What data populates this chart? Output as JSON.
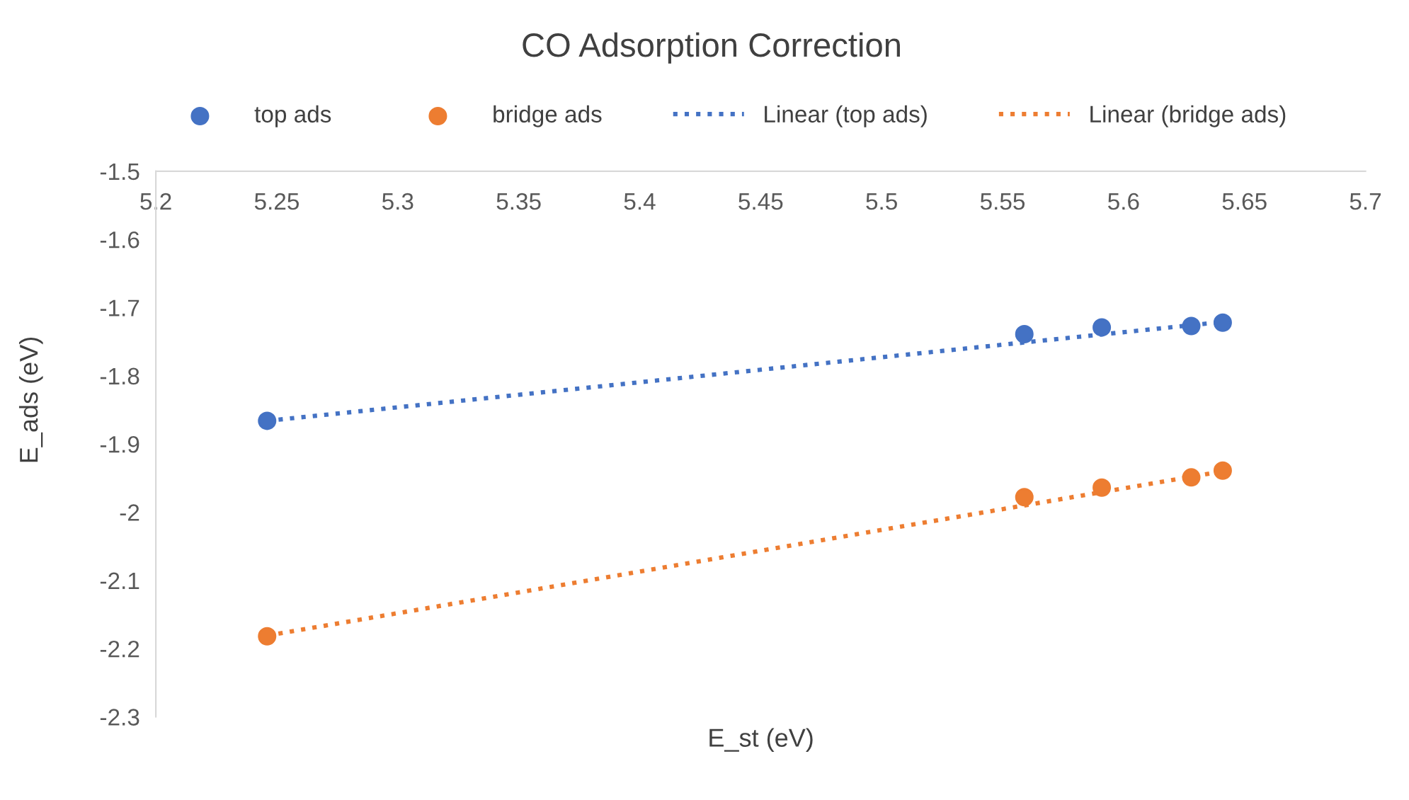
{
  "chart_data": {
    "type": "scatter",
    "title": "CO Adsorption Correction",
    "xlabel": "E_st (eV)",
    "ylabel": "E_ads (eV)",
    "xlim": [
      5.2,
      5.7
    ],
    "ylim": [
      -2.3,
      -1.5
    ],
    "xticks": [
      5.2,
      5.25,
      5.3,
      5.35,
      5.4,
      5.45,
      5.5,
      5.55,
      5.6,
      5.65,
      5.7
    ],
    "yticks": [
      -2.3,
      -2.2,
      -2.1,
      -2,
      -1.9,
      -1.8,
      -1.7,
      -1.6,
      -1.5
    ],
    "grid": false,
    "legend": "top",
    "marker": "circle",
    "series": [
      {
        "name": "top ads",
        "color": "#4472c4",
        "x": [
          5.246,
          5.559,
          5.591,
          5.628,
          5.641
        ],
        "values": [
          -1.866,
          -1.739,
          -1.729,
          -1.727,
          -1.722
        ]
      },
      {
        "name": "bridge ads",
        "color": "#ed7d31",
        "x": [
          5.246,
          5.559,
          5.591,
          5.628,
          5.641
        ],
        "values": [
          -2.182,
          -1.978,
          -1.964,
          -1.949,
          -1.939
        ]
      },
      {
        "name": "Linear (top ads)",
        "type": "line",
        "line_style": "dotted",
        "marker": "none",
        "color": "#4472c4",
        "x": [
          5.246,
          5.641
        ],
        "values": [
          -1.866,
          -1.721
        ]
      },
      {
        "name": "Linear (bridge ads)",
        "type": "line",
        "line_style": "dotted",
        "marker": "none",
        "color": "#ed7d31",
        "x": [
          5.246,
          5.641
        ],
        "values": [
          -2.181,
          -1.94
        ]
      }
    ]
  }
}
